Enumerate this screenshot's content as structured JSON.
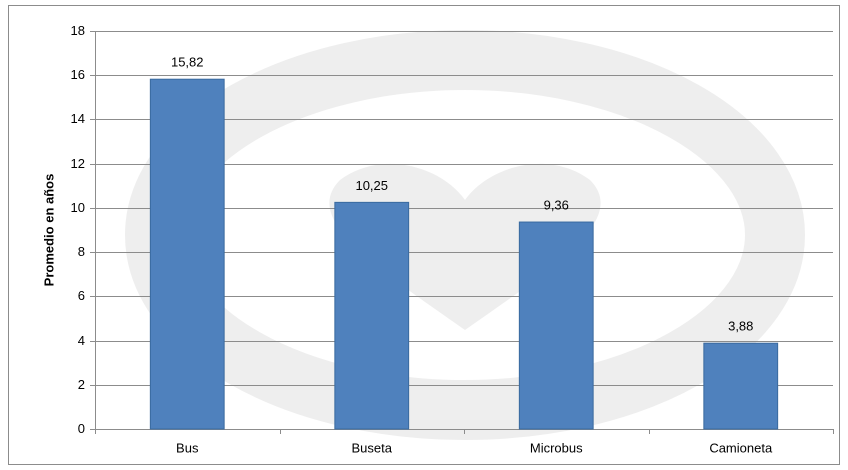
{
  "chart_data": {
    "type": "bar",
    "y_label": "Promedio en años",
    "categories": [
      "Bus",
      "Buseta",
      "Microbus",
      "Camioneta"
    ],
    "values": [
      15.82,
      10.25,
      9.36,
      3.88
    ],
    "value_labels": [
      "15,82",
      "10,25",
      "9,36",
      "3,88"
    ],
    "color": "#4f81bd",
    "ylim": [
      0,
      18
    ],
    "yticks": [
      0,
      2,
      4,
      6,
      8,
      10,
      12,
      14,
      16,
      18
    ],
    "grid": true
  }
}
